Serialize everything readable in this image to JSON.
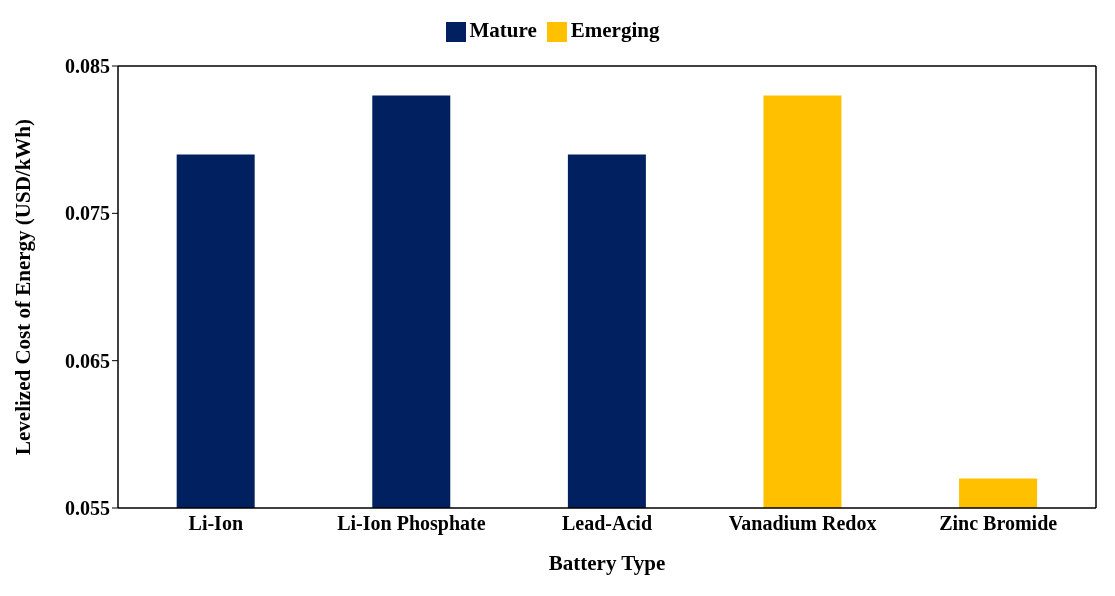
{
  "chart_data": {
    "type": "bar",
    "stacked": true,
    "xlabel": "Battery Type",
    "ylabel": "Levelized Cost of Energy (USD/kWh)",
    "categories": [
      "Li-Ion",
      "Li-Ion Phosphate",
      "Lead-Acid",
      "Vanadium Redox",
      "Zinc Bromide"
    ],
    "series": [
      {
        "name": "Mature",
        "color": "#002060",
        "values": [
          0.079,
          0.083,
          0.079,
          null,
          null
        ]
      },
      {
        "name": "Emerging",
        "color": "#ffc000",
        "values": [
          null,
          null,
          null,
          0.083,
          0.057
        ]
      }
    ],
    "ylim": [
      0.055,
      0.085
    ],
    "yticks": [
      0.055,
      0.065,
      0.075,
      0.085
    ],
    "grid": false,
    "legend": "top"
  }
}
